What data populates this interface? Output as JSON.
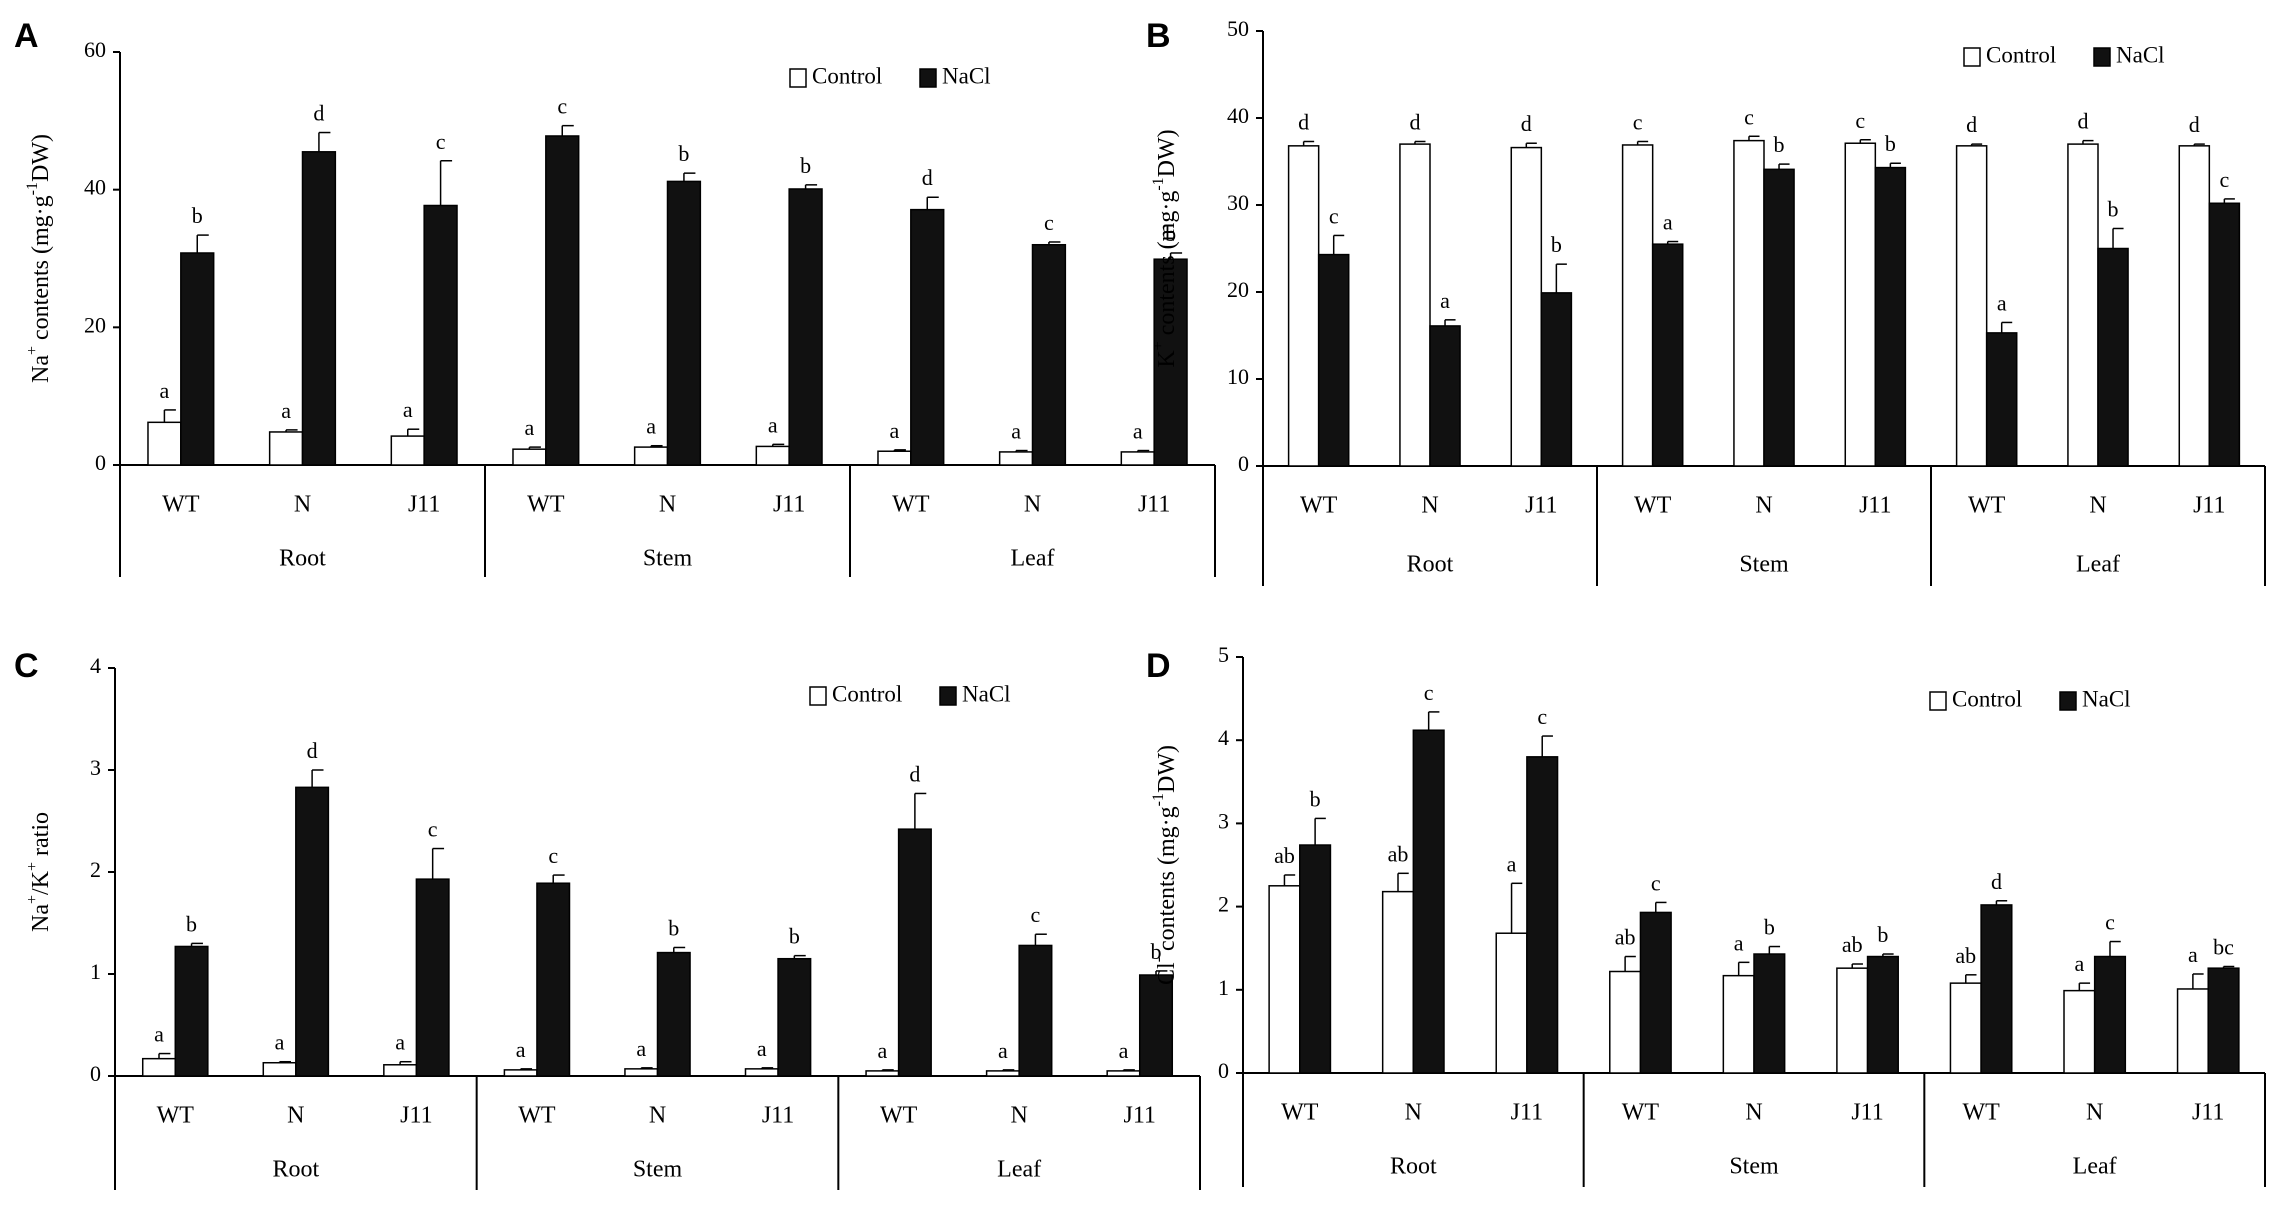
{
  "figure": {
    "legend": {
      "control": "Control",
      "nacl": "NaCl"
    },
    "colors": {
      "control": "#ffffff",
      "nacl": "#111111",
      "axis": "#000000"
    }
  },
  "chart_data": [
    {
      "panel": "A",
      "type": "bar",
      "ylabel": {
        "pre": "Na",
        "sup1": "+",
        "mid": " contents (mg·g",
        "sup2": "-1",
        "post": "DW)"
      },
      "ylim": [
        0,
        60
      ],
      "yticks": [
        0,
        20,
        40,
        60
      ],
      "categories": [
        "WT",
        "N",
        "J11",
        "WT",
        "N",
        "J11",
        "WT",
        "N",
        "J11"
      ],
      "groups": [
        "Root",
        "Stem",
        "Leaf"
      ],
      "legend_position": "top-right",
      "series": [
        {
          "name": "Control",
          "values": [
            6.2,
            4.8,
            4.2,
            2.3,
            2.6,
            2.7,
            2.0,
            1.9,
            1.9
          ],
          "errors": [
            1.8,
            0.3,
            1.0,
            0.3,
            0.2,
            0.3,
            0.2,
            0.2,
            0.2
          ],
          "labels": [
            "a",
            "a",
            "a",
            "a",
            "a",
            "a",
            "a",
            "a",
            "a"
          ]
        },
        {
          "name": "NaCl",
          "values": [
            30.8,
            45.5,
            37.7,
            47.8,
            41.2,
            40.1,
            37.1,
            32.0,
            29.9
          ],
          "errors": [
            2.6,
            2.8,
            6.5,
            1.5,
            1.2,
            0.6,
            1.8,
            0.4,
            0.9
          ],
          "labels": [
            "b",
            "d",
            "c",
            "c",
            "b",
            "b",
            "d",
            "c",
            "b"
          ]
        }
      ]
    },
    {
      "panel": "B",
      "type": "bar",
      "ylabel": {
        "pre": "K",
        "sup1": "+",
        "mid": " contents (mg·g",
        "sup2": "-1",
        "post": "DW)"
      },
      "ylim": [
        0,
        50
      ],
      "yticks": [
        0,
        10,
        20,
        30,
        40,
        50
      ],
      "categories": [
        "WT",
        "N",
        "J11",
        "WT",
        "N",
        "J11",
        "WT",
        "N",
        "J11"
      ],
      "groups": [
        "Root",
        "Stem",
        "Leaf"
      ],
      "legend_position": "top-right",
      "series": [
        {
          "name": "Control",
          "values": [
            36.8,
            37.0,
            36.6,
            36.9,
            37.4,
            37.1,
            36.8,
            37.0,
            36.8
          ],
          "errors": [
            0.5,
            0.3,
            0.5,
            0.4,
            0.5,
            0.4,
            0.2,
            0.4,
            0.2
          ],
          "labels": [
            "d",
            "d",
            "d",
            "c",
            "c",
            "c",
            "d",
            "d",
            "d"
          ]
        },
        {
          "name": "NaCl",
          "values": [
            24.3,
            16.1,
            19.9,
            25.5,
            34.1,
            34.3,
            15.3,
            25.0,
            30.2
          ],
          "errors": [
            2.2,
            0.7,
            3.3,
            0.3,
            0.6,
            0.5,
            1.2,
            2.3,
            0.5
          ],
          "labels": [
            "c",
            "a",
            "b",
            "a",
            "b",
            "b",
            "a",
            "b",
            "c"
          ]
        }
      ]
    },
    {
      "panel": "C",
      "type": "bar",
      "ylabel": {
        "pre": "Na",
        "sup1": "+",
        "mid": "/K",
        "sup2": "+",
        "post": " ratio"
      },
      "ylim": [
        0,
        4
      ],
      "yticks": [
        0,
        1,
        2,
        3,
        4
      ],
      "categories": [
        "WT",
        "N",
        "J11",
        "WT",
        "N",
        "J11",
        "WT",
        "N",
        "J11"
      ],
      "groups": [
        "Root",
        "Stem",
        "Leaf"
      ],
      "legend_position": "top-right",
      "series": [
        {
          "name": "Control",
          "values": [
            0.17,
            0.13,
            0.11,
            0.06,
            0.07,
            0.07,
            0.05,
            0.05,
            0.05
          ],
          "errors": [
            0.05,
            0.01,
            0.03,
            0.01,
            0.01,
            0.01,
            0.01,
            0.01,
            0.01
          ],
          "labels": [
            "a",
            "a",
            "a",
            "a",
            "a",
            "a",
            "a",
            "a",
            "a"
          ]
        },
        {
          "name": "NaCl",
          "values": [
            1.27,
            2.83,
            1.93,
            1.89,
            1.21,
            1.15,
            2.42,
            1.28,
            0.99
          ],
          "errors": [
            0.03,
            0.17,
            0.3,
            0.08,
            0.05,
            0.03,
            0.35,
            0.11,
            0.04
          ],
          "labels": [
            "b",
            "d",
            "c",
            "c",
            "b",
            "b",
            "d",
            "c",
            "b"
          ]
        }
      ]
    },
    {
      "panel": "D",
      "type": "bar",
      "ylabel": {
        "pre": "Cl",
        "sup1": "-",
        "mid": " contents (mg·g",
        "sup2": "-1",
        "post": "DW)"
      },
      "ylim": [
        0,
        5
      ],
      "yticks": [
        0,
        1,
        2,
        3,
        4,
        5
      ],
      "categories": [
        "WT",
        "N",
        "J11",
        "WT",
        "N",
        "J11",
        "WT",
        "N",
        "J11"
      ],
      "groups": [
        "Root",
        "Stem",
        "Leaf"
      ],
      "legend_position": "top-right",
      "series": [
        {
          "name": "Control",
          "values": [
            2.25,
            2.18,
            1.68,
            1.22,
            1.17,
            1.26,
            1.08,
            0.99,
            1.01
          ],
          "errors": [
            0.13,
            0.22,
            0.6,
            0.18,
            0.16,
            0.05,
            0.1,
            0.09,
            0.18
          ],
          "labels": [
            "ab",
            "ab",
            "a",
            "ab",
            "a",
            "ab",
            "ab",
            "a",
            "a"
          ]
        },
        {
          "name": "NaCl",
          "values": [
            2.74,
            4.12,
            3.8,
            1.93,
            1.43,
            1.4,
            2.02,
            1.4,
            1.26
          ],
          "errors": [
            0.32,
            0.22,
            0.25,
            0.12,
            0.09,
            0.03,
            0.05,
            0.18,
            0.02
          ],
          "labels": [
            "b",
            "c",
            "c",
            "c",
            "b",
            "b",
            "d",
            "c",
            "bc"
          ]
        }
      ]
    }
  ]
}
